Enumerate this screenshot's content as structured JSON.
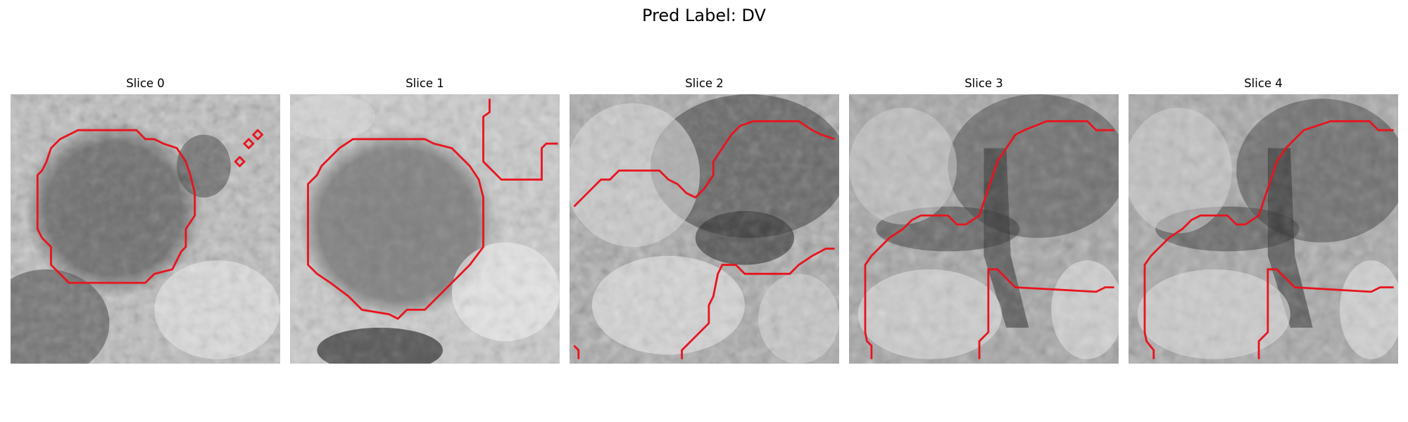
{
  "figure": {
    "title": "Pred Label: DV"
  },
  "panels": [
    {
      "title": "Slice 0"
    },
    {
      "title": "Slice 1"
    },
    {
      "title": "Slice 2"
    },
    {
      "title": "Slice 3"
    },
    {
      "title": "Slice 4"
    }
  ],
  "colors": {
    "contour": "#e8141e",
    "background": "#ffffff"
  }
}
